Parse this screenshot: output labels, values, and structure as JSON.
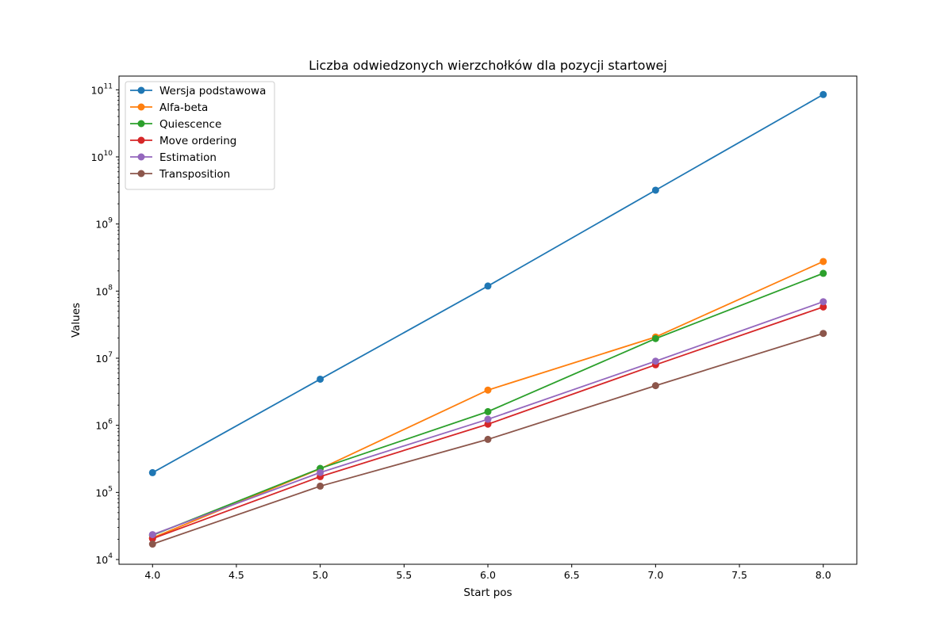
{
  "chart_data": {
    "type": "line",
    "title": "Liczba odwiedzonych wierzchołków dla pozycji startowej",
    "xlabel": "Start pos",
    "ylabel": "Values",
    "yscale": "log",
    "xlim": [
      3.8,
      8.2
    ],
    "ylim": [
      8500,
      160000000000
    ],
    "grid": false,
    "legend_position": "upper-left",
    "x": [
      4,
      5,
      6,
      7,
      8
    ],
    "x_ticks": [
      {
        "value": 4.0,
        "label": "4.0"
      },
      {
        "value": 4.5,
        "label": "4.5"
      },
      {
        "value": 5.0,
        "label": "5.0"
      },
      {
        "value": 5.5,
        "label": "5.5"
      },
      {
        "value": 6.0,
        "label": "6.0"
      },
      {
        "value": 6.5,
        "label": "6.5"
      },
      {
        "value": 7.0,
        "label": "7.0"
      },
      {
        "value": 7.5,
        "label": "7.5"
      },
      {
        "value": 8.0,
        "label": "8.0"
      }
    ],
    "y_ticks": [
      {
        "exp": 4,
        "base": "10",
        "sup": "4"
      },
      {
        "exp": 5,
        "base": "10",
        "sup": "5"
      },
      {
        "exp": 6,
        "base": "10",
        "sup": "6"
      },
      {
        "exp": 7,
        "base": "10",
        "sup": "7"
      },
      {
        "exp": 8,
        "base": "10",
        "sup": "8"
      },
      {
        "exp": 9,
        "base": "10",
        "sup": "9"
      },
      {
        "exp": 10,
        "base": "10",
        "sup": "10"
      },
      {
        "exp": 11,
        "base": "10",
        "sup": "11"
      }
    ],
    "series": [
      {
        "name": "Wersja podstawowa",
        "color": "#1f77b4",
        "values": [
          197000,
          4870000,
          119000000,
          3190000000,
          85000000000
        ]
      },
      {
        "name": "Alfa-beta",
        "color": "#ff7f0e",
        "values": [
          21000,
          225000,
          3350000,
          20700000,
          276000000
        ]
      },
      {
        "name": "Quiescence",
        "color": "#2ca02c",
        "values": [
          23000,
          228000,
          1600000,
          19600000,
          184000000
        ]
      },
      {
        "name": "Move ordering",
        "color": "#d62728",
        "values": [
          20500,
          172000,
          1040000,
          7980000,
          58000000
        ]
      },
      {
        "name": "Estimation",
        "color": "#9467bd",
        "values": [
          23500,
          198000,
          1230000,
          9030000,
          69500000
        ]
      },
      {
        "name": "Transposition",
        "color": "#8c564b",
        "values": [
          17000,
          124000,
          617000,
          3900000,
          23400000
        ]
      }
    ]
  }
}
